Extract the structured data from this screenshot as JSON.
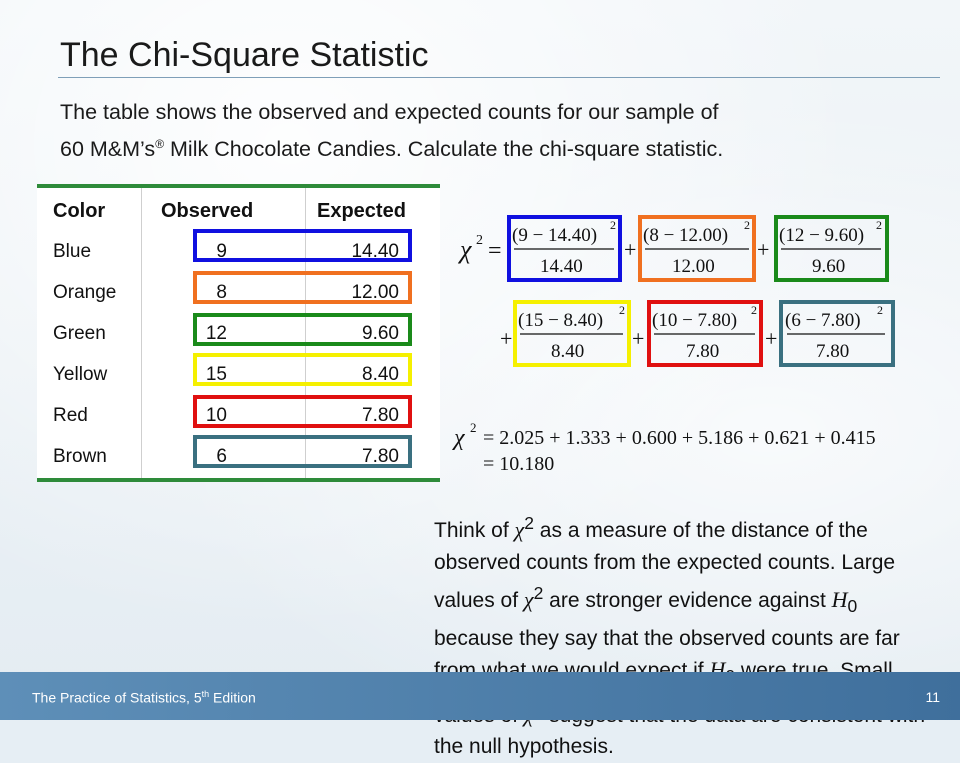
{
  "title": "The Chi-Square Statistic",
  "intro": {
    "line1": "The table shows the observed and expected counts for our sample of",
    "line2_a": "60 M&M’s",
    "line2_reg": "®",
    "line2_b": " Milk Chocolate Candies.  Calculate the chi-square statistic."
  },
  "table": {
    "headers": [
      "Color",
      "Observed",
      "Expected"
    ],
    "rows": [
      {
        "color": "Blue",
        "observed": "9",
        "expected": "14.40",
        "box_color": "#1010e0"
      },
      {
        "color": "Orange",
        "observed": "8",
        "expected": "12.00",
        "box_color": "#f07020"
      },
      {
        "color": "Green",
        "observed": "12",
        "expected": "9.60",
        "box_color": "#1a8a1a"
      },
      {
        "color": "Yellow",
        "observed": "15",
        "expected": "8.40",
        "box_color": "#f5f000"
      },
      {
        "color": "Red",
        "observed": "10",
        "expected": "7.80",
        "box_color": "#e01010"
      },
      {
        "color": "Brown",
        "observed": "6",
        "expected": "7.80",
        "box_color": "#3a7080"
      }
    ]
  },
  "equation": {
    "chi": "χ",
    "sq": "2",
    "equals": "=",
    "plus": "+",
    "terms": [
      {
        "num": "(9 − 14.40)",
        "den": "14.40",
        "box_color": "#1010e0"
      },
      {
        "num": "(8 − 12.00)",
        "den": "12.00",
        "box_color": "#f07020"
      },
      {
        "num": "(12 − 9.60)",
        "den": "9.60",
        "box_color": "#1a8a1a"
      },
      {
        "num": "(15 − 8.40)",
        "den": "8.40",
        "box_color": "#f5f000"
      },
      {
        "num": "(10 − 7.80)",
        "den": "7.80",
        "box_color": "#e01010"
      },
      {
        "num": "(6 − 7.80)",
        "den": "7.80",
        "box_color": "#3a7080"
      }
    ],
    "sum_line": "= 2.025 + 1.333 + 0.600 + 5.186 + 0.621 + 0.415",
    "result_line": "= 10.180"
  },
  "paragraph": {
    "p1": "Think of ",
    "p2": " as a measure of the distance of the observed counts from the expected counts. Large values of ",
    "p3": " are stronger evidence against ",
    "h": "H",
    "h_sub": "0",
    "p4": " because they say that the observed counts are far from what we would expect if ",
    "p5": " were true. Small values of ",
    "p6": " suggest that the data are consistent with the null hypothesis."
  },
  "footer": {
    "book_a": "The Practice of Statistics, 5",
    "book_sup": "th",
    "book_b": " Edition",
    "page_number": "11"
  }
}
